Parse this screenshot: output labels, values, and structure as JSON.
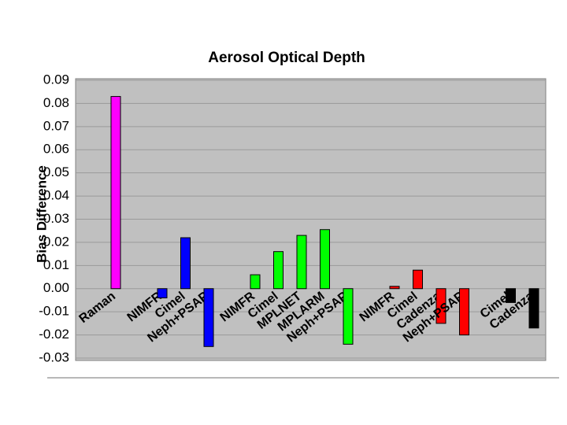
{
  "chart_data": {
    "type": "bar",
    "title": "Aerosol Optical Depth",
    "y_label": "Bias Difference",
    "categories": [
      "Raman",
      null,
      "NIMFR",
      "Cimel",
      "Neph+PSAP",
      null,
      "NIMFR",
      "Cimel",
      "MPLNET",
      "MPLARM",
      "Neph+PSAP",
      null,
      "NIMFR",
      "Cimel",
      "Cadenza",
      "Neph+PSAP",
      null,
      "Cimel",
      "Cadenza"
    ],
    "values": [
      0.083,
      null,
      -0.004,
      0.022,
      -0.025,
      null,
      0.006,
      0.016,
      0.023,
      0.0255,
      -0.024,
      null,
      0.001,
      0.008,
      -0.015,
      -0.02,
      null,
      -0.006,
      -0.017
    ],
    "colors": [
      "#ff00ff",
      null,
      "#0000ff",
      "#0000ff",
      "#0000ff",
      null,
      "#00ff00",
      "#00ff00",
      "#00ff00",
      "#00ff00",
      "#00ff00",
      null,
      "#ff0000",
      "#ff0000",
      "#ff0000",
      "#ff0000",
      null,
      "#000000",
      "#000000"
    ],
    "ylim": [
      -0.03,
      0.09
    ],
    "yticks": [
      -0.03,
      -0.02,
      -0.01,
      {
        "value": 0,
        "label": "0.00"
      },
      0.01,
      0.02,
      0.03,
      0.04,
      0.05,
      0.06,
      0.07,
      0.08,
      0.09
    ],
    "grid": true
  }
}
